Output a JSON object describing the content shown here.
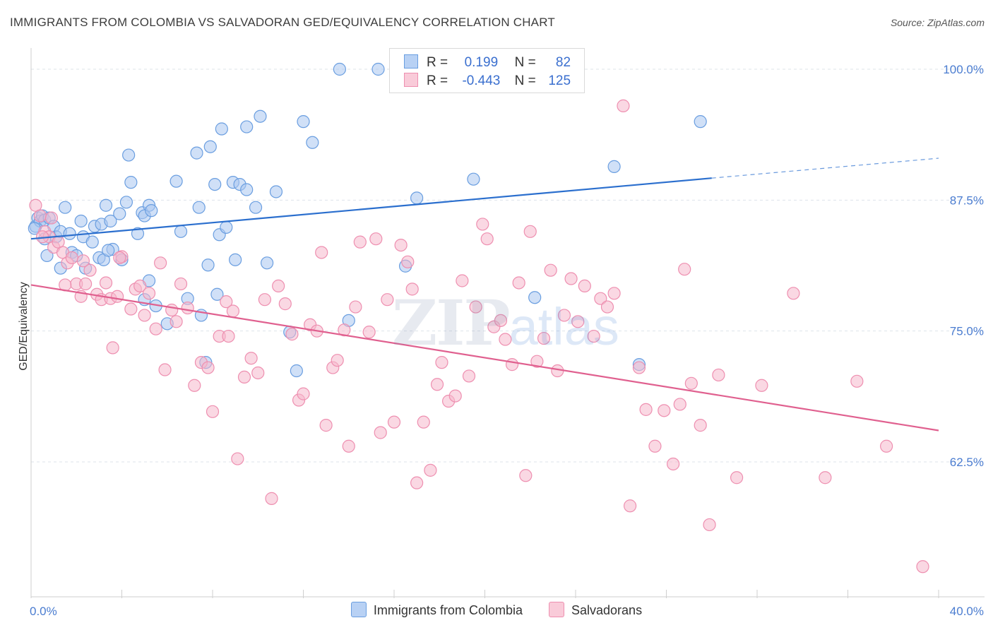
{
  "header": {
    "title": "IMMIGRANTS FROM COLOMBIA VS SALVADORAN GED/EQUIVALENCY CORRELATION CHART",
    "source": "Source: ZipAtlas.com"
  },
  "watermark": {
    "zip": "ZIP",
    "atlas": "atlas"
  },
  "legend": {
    "rows": [
      {
        "r_label": "R =",
        "r_value": " 0.199",
        "n_label": "N =",
        "n_value": " 82"
      },
      {
        "r_label": "R =",
        "r_value": "-0.443",
        "n_label": "N =",
        "n_value": "125"
      }
    ]
  },
  "bottom_legend": [
    "Immigrants from Colombia",
    "Salvadorans"
  ],
  "colors": {
    "blue_fill": "#a9c6f0",
    "blue_stroke": "#6a9ee0",
    "blue_line": "#2b6fce",
    "pink_fill": "#f6b8cc",
    "pink_stroke": "#ee8fb0",
    "pink_line": "#e0608f",
    "grid": "#dde3ea",
    "tick_text": "#4a7cd0"
  },
  "chart_data": {
    "type": "scatter",
    "title": "IMMIGRANTS FROM COLOMBIA VS SALVADORAN GED/EQUIVALENCY CORRELATION CHART",
    "xlabel": "",
    "ylabel": "GED/Equivalency",
    "xlim": [
      0,
      40
    ],
    "ylim": [
      50,
      102
    ],
    "x_tick_labels": [
      "0.0%",
      "40.0%"
    ],
    "y_ticks": [
      62.5,
      75.0,
      87.5,
      100.0
    ],
    "y_tick_labels": [
      "62.5%",
      "75.0%",
      "87.5%",
      "100.0%"
    ],
    "grid": true,
    "legend_position": "top-center",
    "series": [
      {
        "name": "Immigrants from Colombia",
        "R": 0.199,
        "N": 82,
        "trend": {
          "x0": 0,
          "y0": 83.8,
          "x1": 30,
          "y1": 89.6,
          "dash_to_x": 40,
          "dash_to_y": 91.5
        },
        "points": [
          [
            0.2,
            85.0
          ],
          [
            0.3,
            85.8
          ],
          [
            0.4,
            85.5
          ],
          [
            0.5,
            86.0
          ],
          [
            0.6,
            85.6
          ],
          [
            0.7,
            82.2
          ],
          [
            0.8,
            85.8
          ],
          [
            1.0,
            85.0
          ],
          [
            1.1,
            84.0
          ],
          [
            1.3,
            84.5
          ],
          [
            1.5,
            86.8
          ],
          [
            1.7,
            84.3
          ],
          [
            1.8,
            82.5
          ],
          [
            2.0,
            82.2
          ],
          [
            2.2,
            85.5
          ],
          [
            2.3,
            84.0
          ],
          [
            2.8,
            85.0
          ],
          [
            2.7,
            83.5
          ],
          [
            3.0,
            82.0
          ],
          [
            3.1,
            85.2
          ],
          [
            3.3,
            87.0
          ],
          [
            3.5,
            85.5
          ],
          [
            3.6,
            82.8
          ],
          [
            3.9,
            86.2
          ],
          [
            4.2,
            87.3
          ],
          [
            4.3,
            91.8
          ],
          [
            4.4,
            89.2
          ],
          [
            4.7,
            84.3
          ],
          [
            4.9,
            86.3
          ],
          [
            5.0,
            86.0
          ],
          [
            5.2,
            87.0
          ],
          [
            5.3,
            86.5
          ],
          [
            6.4,
            89.3
          ],
          [
            6.6,
            84.5
          ],
          [
            7.4,
            86.8
          ],
          [
            7.3,
            92.0
          ],
          [
            7.9,
            92.6
          ],
          [
            8.1,
            89.0
          ],
          [
            8.3,
            84.2
          ],
          [
            8.6,
            84.9
          ],
          [
            8.9,
            89.2
          ],
          [
            9.2,
            89.0
          ],
          [
            9.5,
            88.5
          ],
          [
            9.9,
            86.8
          ],
          [
            10.1,
            95.5
          ],
          [
            10.8,
            88.3
          ],
          [
            12.0,
            95.0
          ],
          [
            12.4,
            93.0
          ],
          [
            13.6,
            100.0
          ],
          [
            15.3,
            100.0
          ],
          [
            17.0,
            87.7
          ],
          [
            19.5,
            89.5
          ],
          [
            22.5,
            100.0
          ],
          [
            23.0,
            100.0
          ],
          [
            29.5,
            95.0
          ],
          [
            25.7,
            90.7
          ],
          [
            4.0,
            81.8
          ],
          [
            5.2,
            79.8
          ],
          [
            5.0,
            78.0
          ],
          [
            3.2,
            81.8
          ],
          [
            2.4,
            81.0
          ],
          [
            1.3,
            81.0
          ],
          [
            7.8,
            81.3
          ],
          [
            8.2,
            78.5
          ],
          [
            9.0,
            81.8
          ],
          [
            10.4,
            81.5
          ],
          [
            6.9,
            78.1
          ],
          [
            5.5,
            77.4
          ],
          [
            6.0,
            75.7
          ],
          [
            7.5,
            76.5
          ],
          [
            11.4,
            74.9
          ],
          [
            11.7,
            71.2
          ],
          [
            14.0,
            76.0
          ],
          [
            16.5,
            81.2
          ],
          [
            22.2,
            78.2
          ],
          [
            26.8,
            71.8
          ],
          [
            7.7,
            72.0
          ],
          [
            8.4,
            94.3
          ],
          [
            9.5,
            94.5
          ],
          [
            3.4,
            82.7
          ],
          [
            0.15,
            84.8
          ],
          [
            0.6,
            83.8
          ]
        ]
      },
      {
        "name": "Salvadorans",
        "R": -0.443,
        "N": 125,
        "trend": {
          "x0": 0,
          "y0": 79.4,
          "x1": 40,
          "y1": 65.5
        },
        "points": [
          [
            0.2,
            87.0
          ],
          [
            0.4,
            86.0
          ],
          [
            0.6,
            84.5
          ],
          [
            0.8,
            84.0
          ],
          [
            1.0,
            83.0
          ],
          [
            1.2,
            83.5
          ],
          [
            1.4,
            82.5
          ],
          [
            1.6,
            81.5
          ],
          [
            1.8,
            82.0
          ],
          [
            2.0,
            79.5
          ],
          [
            2.2,
            78.3
          ],
          [
            2.4,
            79.5
          ],
          [
            2.6,
            80.8
          ],
          [
            2.9,
            78.5
          ],
          [
            3.1,
            78.0
          ],
          [
            3.3,
            79.6
          ],
          [
            3.5,
            78.1
          ],
          [
            3.6,
            73.4
          ],
          [
            3.8,
            78.3
          ],
          [
            4.0,
            82.1
          ],
          [
            4.4,
            77.1
          ],
          [
            4.6,
            79.0
          ],
          [
            4.8,
            79.3
          ],
          [
            5.0,
            76.5
          ],
          [
            5.2,
            78.6
          ],
          [
            5.5,
            75.2
          ],
          [
            5.7,
            81.5
          ],
          [
            5.9,
            71.3
          ],
          [
            6.2,
            77.0
          ],
          [
            6.4,
            75.9
          ],
          [
            6.6,
            79.5
          ],
          [
            6.9,
            77.2
          ],
          [
            7.2,
            69.8
          ],
          [
            7.5,
            72.0
          ],
          [
            7.8,
            71.5
          ],
          [
            8.0,
            67.3
          ],
          [
            8.3,
            74.5
          ],
          [
            8.6,
            77.8
          ],
          [
            8.9,
            76.9
          ],
          [
            9.1,
            62.8
          ],
          [
            9.4,
            70.6
          ],
          [
            9.7,
            72.4
          ],
          [
            10.0,
            71.0
          ],
          [
            10.3,
            78.0
          ],
          [
            10.6,
            59.0
          ],
          [
            10.9,
            79.3
          ],
          [
            11.2,
            77.6
          ],
          [
            11.5,
            74.7
          ],
          [
            11.8,
            68.4
          ],
          [
            12.0,
            69.0
          ],
          [
            12.3,
            75.6
          ],
          [
            12.6,
            75.0
          ],
          [
            12.8,
            82.5
          ],
          [
            13.0,
            66.0
          ],
          [
            13.3,
            71.5
          ],
          [
            13.5,
            72.2
          ],
          [
            13.8,
            75.1
          ],
          [
            14.0,
            64.0
          ],
          [
            14.3,
            77.3
          ],
          [
            14.5,
            83.5
          ],
          [
            14.9,
            74.9
          ],
          [
            15.2,
            83.8
          ],
          [
            15.4,
            65.3
          ],
          [
            15.7,
            78.0
          ],
          [
            16.0,
            66.3
          ],
          [
            16.3,
            83.2
          ],
          [
            16.6,
            81.6
          ],
          [
            16.8,
            79.0
          ],
          [
            17.0,
            60.5
          ],
          [
            17.3,
            66.3
          ],
          [
            17.6,
            61.7
          ],
          [
            17.9,
            69.9
          ],
          [
            18.1,
            72.0
          ],
          [
            18.4,
            68.3
          ],
          [
            18.7,
            68.8
          ],
          [
            19.0,
            79.8
          ],
          [
            19.3,
            70.7
          ],
          [
            19.6,
            77.3
          ],
          [
            19.9,
            85.2
          ],
          [
            20.1,
            83.8
          ],
          [
            20.4,
            75.4
          ],
          [
            20.7,
            76.0
          ],
          [
            20.9,
            74.2
          ],
          [
            21.2,
            71.8
          ],
          [
            21.5,
            79.6
          ],
          [
            21.8,
            61.2
          ],
          [
            22.0,
            84.5
          ],
          [
            22.3,
            72.1
          ],
          [
            22.6,
            74.3
          ],
          [
            22.9,
            80.8
          ],
          [
            23.2,
            71.2
          ],
          [
            23.5,
            76.5
          ],
          [
            23.8,
            80.0
          ],
          [
            24.1,
            75.9
          ],
          [
            24.4,
            79.3
          ],
          [
            24.8,
            74.5
          ],
          [
            25.1,
            78.1
          ],
          [
            25.4,
            77.3
          ],
          [
            25.7,
            78.6
          ],
          [
            26.1,
            96.5
          ],
          [
            26.4,
            58.3
          ],
          [
            26.8,
            71.5
          ],
          [
            27.1,
            67.5
          ],
          [
            27.5,
            64.0
          ],
          [
            27.9,
            67.4
          ],
          [
            28.3,
            62.3
          ],
          [
            28.6,
            68.0
          ],
          [
            28.8,
            80.9
          ],
          [
            29.1,
            70.0
          ],
          [
            29.5,
            66.0
          ],
          [
            29.9,
            56.5
          ],
          [
            30.3,
            70.8
          ],
          [
            31.1,
            61.0
          ],
          [
            32.2,
            69.8
          ],
          [
            33.6,
            78.6
          ],
          [
            35.0,
            61.0
          ],
          [
            36.4,
            70.2
          ],
          [
            37.7,
            64.0
          ],
          [
            39.3,
            52.5
          ],
          [
            0.5,
            84.0
          ],
          [
            0.9,
            85.8
          ],
          [
            1.5,
            79.4
          ],
          [
            3.9,
            82.0
          ],
          [
            2.3,
            81.7
          ],
          [
            8.7,
            74.5
          ]
        ]
      }
    ]
  }
}
